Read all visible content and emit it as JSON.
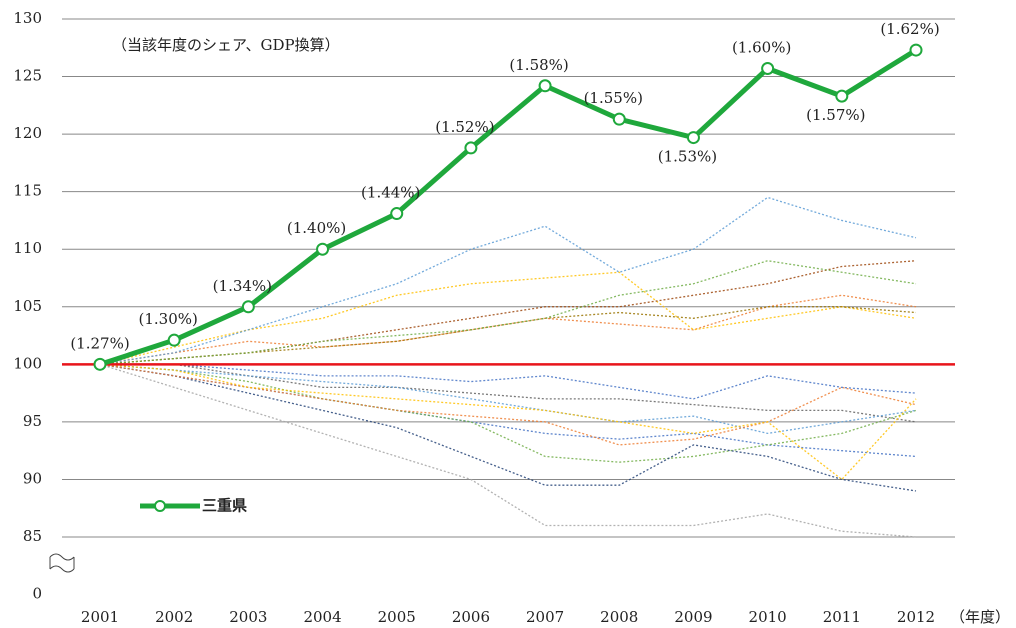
{
  "chart_data": {
    "type": "line",
    "annotation": "（当該年度のシェア、GDP換算）",
    "x_unit_label": "（年度）",
    "categories": [
      "2001",
      "2002",
      "2003",
      "2004",
      "2005",
      "2006",
      "2007",
      "2008",
      "2009",
      "2010",
      "2011",
      "2012"
    ],
    "ylim": [
      85,
      130
    ],
    "yticks": [
      0,
      85,
      90,
      95,
      100,
      105,
      110,
      115,
      120,
      125,
      130
    ],
    "axis_break": true,
    "grid": true,
    "legend": "lower left",
    "reference_line": {
      "value": 100,
      "color": "#e8141b"
    },
    "series": [
      {
        "name": "三重県",
        "color": "#1fa83c",
        "values": [
          100,
          102.1,
          105,
          110,
          113.1,
          118.8,
          124.2,
          121.3,
          119.7,
          125.7,
          123.3,
          127.3
        ],
        "share_labels": [
          "(1.27%)",
          "(1.30%)",
          "(1.34%)",
          "(1.40%)",
          "(1.44%)",
          "(1.52%)",
          "(1.58%)",
          "(1.55%)",
          "(1.53%)",
          "(1.60%)",
          "(1.57%)",
          "(1.62%)"
        ]
      }
    ],
    "background_series": [
      {
        "color": "#4472c4",
        "values": [
          100,
          99,
          98,
          97,
          96,
          95,
          94,
          93.5,
          94,
          93,
          92.5,
          92
        ]
      },
      {
        "color": "#ed7d31",
        "values": [
          100,
          101,
          102,
          101.5,
          102,
          103,
          104,
          103.5,
          103,
          105,
          106,
          105
        ]
      },
      {
        "color": "#a5a5a5",
        "values": [
          100,
          98,
          96,
          94,
          92,
          90,
          86,
          86,
          86,
          87,
          85.5,
          85
        ]
      },
      {
        "color": "#ffc000",
        "values": [
          100,
          101.5,
          103,
          104,
          106,
          107,
          107.5,
          108,
          103,
          104,
          105,
          104
        ]
      },
      {
        "color": "#5b9bd5",
        "values": [
          100,
          101,
          103,
          105,
          107,
          110,
          112,
          108,
          110,
          114.5,
          112.5,
          111
        ]
      },
      {
        "color": "#70ad47",
        "values": [
          100,
          99.5,
          98.5,
          97,
          96,
          95,
          92,
          91.5,
          92,
          93,
          94,
          96
        ]
      },
      {
        "color": "#264478",
        "values": [
          100,
          99,
          97.5,
          96,
          94.5,
          92,
          89.5,
          89.5,
          93,
          92,
          90,
          89
        ]
      },
      {
        "color": "#9e480e",
        "values": [
          100,
          100.5,
          101,
          102,
          103,
          104,
          105,
          105,
          106,
          107,
          108.5,
          109
        ]
      },
      {
        "color": "#636363",
        "values": [
          100,
          100,
          99,
          98,
          98,
          97.5,
          97,
          97,
          96.5,
          96,
          96,
          95
        ]
      },
      {
        "color": "#997300",
        "values": [
          100,
          100.5,
          101,
          101.5,
          102,
          103,
          104,
          104.5,
          104,
          105,
          105,
          104.5
        ]
      },
      {
        "color": "#5b9bd5",
        "values": [
          100,
          99.5,
          99,
          98.5,
          98,
          97,
          96,
          95,
          95.5,
          94,
          95,
          96
        ]
      },
      {
        "color": "#ed7d31",
        "values": [
          100,
          99,
          98,
          97,
          96,
          95.5,
          95,
          93,
          93.5,
          95,
          98,
          96.5
        ]
      },
      {
        "color": "#70ad47",
        "values": [
          100,
          100.5,
          101,
          102,
          102.5,
          103,
          104,
          106,
          107,
          109,
          108,
          107
        ]
      },
      {
        "color": "#4472c4",
        "values": [
          100,
          100,
          99.5,
          99,
          99,
          98.5,
          99,
          98,
          97,
          99,
          98,
          97.5
        ]
      },
      {
        "color": "#ffc000",
        "values": [
          100,
          99.5,
          98,
          97.5,
          97,
          96.5,
          96,
          95,
          94,
          95,
          90,
          97
        ]
      }
    ]
  }
}
